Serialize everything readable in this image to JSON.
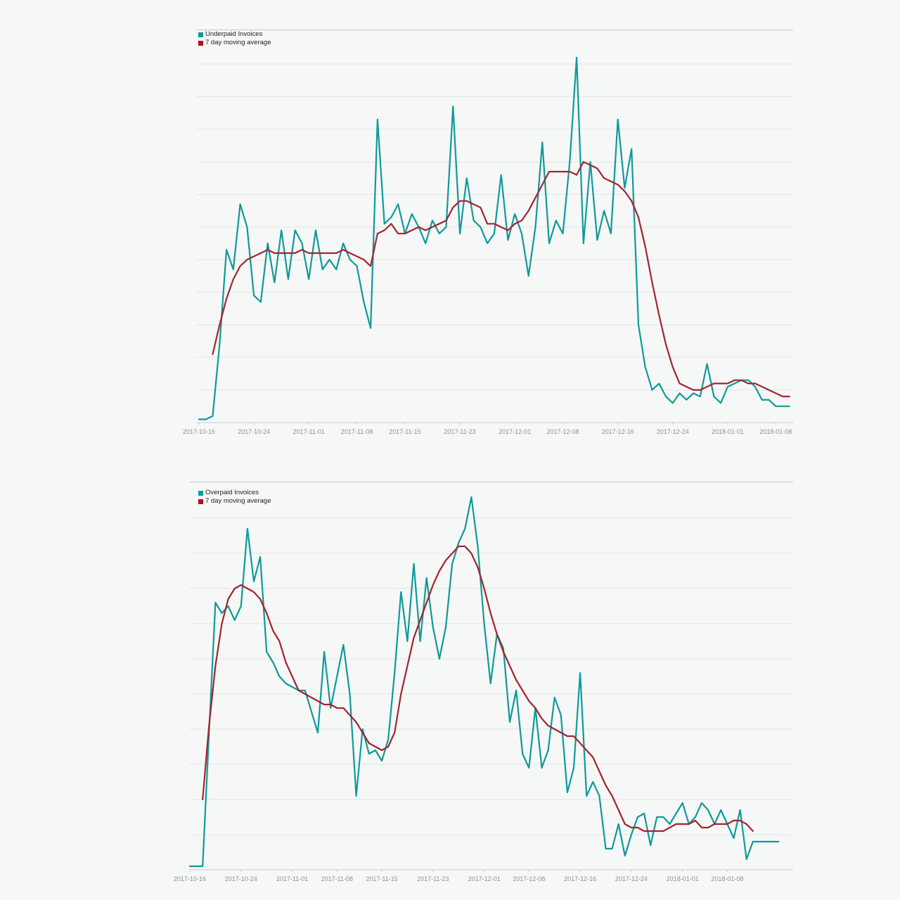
{
  "page": {
    "background": "#f6f7f7",
    "colors": {
      "teal_line": "#0f9a9a",
      "red_line": "#a3242f",
      "teal_swatch": "#0d9a9a",
      "red_swatch": "#b30d1c",
      "gridline": "#e3e5e5",
      "axis_line": "#c9cbcb",
      "axis_label_text": "#8f9192"
    }
  },
  "chart_data": [
    {
      "type": "line",
      "title": "",
      "xlabel": "",
      "ylabel": "",
      "grid": {
        "horizontal": true,
        "vertical": false,
        "y_step": 10
      },
      "ylim": [
        0,
        115
      ],
      "legend_position": "top-left",
      "x_tick_labels": [
        "2017-10-16",
        "2017-10-24",
        "2017-11-01",
        "2017-11-08",
        "2017-11-15",
        "2017-11-23",
        "2017-12-01",
        "2017-12-08",
        "2017-12-16",
        "2017-12-24",
        "2018-01-01",
        "2018-01-08"
      ],
      "x_tick_day_index": [
        0,
        8,
        16,
        23,
        30,
        38,
        46,
        53,
        61,
        69,
        77,
        84
      ],
      "x": [
        "2017-10-16",
        "2017-10-17",
        "2017-10-18",
        "2017-10-19",
        "2017-10-20",
        "2017-10-21",
        "2017-10-22",
        "2017-10-23",
        "2017-10-24",
        "2017-10-25",
        "2017-10-26",
        "2017-10-27",
        "2017-10-28",
        "2017-10-29",
        "2017-10-30",
        "2017-10-31",
        "2017-11-01",
        "2017-11-02",
        "2017-11-03",
        "2017-11-04",
        "2017-11-05",
        "2017-11-06",
        "2017-11-07",
        "2017-11-08",
        "2017-11-09",
        "2017-11-10",
        "2017-11-11",
        "2017-11-12",
        "2017-11-13",
        "2017-11-14",
        "2017-11-15",
        "2017-11-16",
        "2017-11-17",
        "2017-11-18",
        "2017-11-19",
        "2017-11-20",
        "2017-11-21",
        "2017-11-22",
        "2017-11-23",
        "2017-11-24",
        "2017-11-25",
        "2017-11-26",
        "2017-11-27",
        "2017-11-28",
        "2017-11-29",
        "2017-11-30",
        "2017-12-01",
        "2017-12-02",
        "2017-12-03",
        "2017-12-04",
        "2017-12-05",
        "2017-12-06",
        "2017-12-07",
        "2017-12-08",
        "2017-12-09",
        "2017-12-10",
        "2017-12-11",
        "2017-12-12",
        "2017-12-13",
        "2017-12-14",
        "2017-12-15",
        "2017-12-16",
        "2017-12-17",
        "2017-12-18",
        "2017-12-19",
        "2017-12-20",
        "2017-12-21",
        "2017-12-22",
        "2017-12-23",
        "2017-12-24",
        "2017-12-25",
        "2017-12-26",
        "2017-12-27",
        "2017-12-28",
        "2017-12-29",
        "2017-12-30",
        "2017-12-31",
        "2018-01-01",
        "2018-01-02",
        "2018-01-03",
        "2018-01-04",
        "2018-01-05",
        "2018-01-06",
        "2018-01-07",
        "2018-01-08",
        "2018-01-09",
        "2018-01-10"
      ],
      "series": [
        {
          "name": "Underpaid Invoices",
          "color": "#0f9a9a",
          "swatch_color": "#0d9a9a",
          "values": [
            1,
            1,
            2,
            24,
            53,
            47,
            67,
            60,
            39,
            37,
            55,
            43,
            59,
            44,
            59,
            55,
            44,
            59,
            47,
            50,
            47,
            55,
            50,
            48,
            37,
            29,
            93,
            61,
            63,
            67,
            58,
            64,
            60,
            55,
            62,
            58,
            60,
            97,
            58,
            75,
            62,
            60,
            55,
            58,
            76,
            56,
            64,
            58,
            45,
            60,
            86,
            55,
            62,
            58,
            80,
            112,
            55,
            80,
            56,
            65,
            58,
            93,
            72,
            84,
            30,
            17,
            10,
            12,
            8,
            6,
            9,
            7,
            9,
            8,
            18,
            8,
            6,
            11,
            12,
            13,
            13,
            11,
            7,
            7,
            5,
            5,
            5
          ]
        },
        {
          "name": "7 day moving average",
          "color": "#a3242f",
          "swatch_color": "#b30d1c",
          "values": [
            null,
            null,
            21,
            30,
            38,
            44,
            48,
            50,
            51,
            52,
            53,
            52,
            52,
            52,
            52,
            53,
            52,
            52,
            52,
            52,
            52,
            53,
            52,
            51,
            50,
            48,
            58,
            59,
            61,
            58,
            58,
            59,
            60,
            59,
            60,
            61,
            62,
            66,
            68,
            68,
            67,
            66,
            61,
            61,
            60,
            59,
            61,
            62,
            65,
            69,
            73,
            77,
            77,
            77,
            77,
            76,
            80,
            79,
            78,
            75,
            74,
            73,
            71,
            68,
            63,
            54,
            43,
            33,
            24,
            17,
            12,
            11,
            10,
            10,
            11,
            12,
            12,
            12,
            13,
            13,
            12,
            12,
            11,
            10,
            9,
            8,
            8
          ]
        }
      ]
    },
    {
      "type": "line",
      "title": "",
      "xlabel": "",
      "ylabel": "",
      "grid": {
        "horizontal": true,
        "vertical": false,
        "y_step": 10
      },
      "ylim": [
        0,
        110
      ],
      "legend_position": "top-left",
      "x_tick_labels": [
        "2017-10-16",
        "2017-10-24",
        "2017-11-01",
        "2017-11-08",
        "2017-11-15",
        "2017-11-23",
        "2017-12-01",
        "2017-12-08",
        "2017-12-16",
        "2017-12-24",
        "2018-01-01",
        "2018-01-08"
      ],
      "x_tick_day_index": [
        0,
        8,
        16,
        23,
        30,
        38,
        46,
        53,
        61,
        69,
        77,
        84
      ],
      "x": [
        "2017-10-16",
        "2017-10-17",
        "2017-10-18",
        "2017-10-19",
        "2017-10-20",
        "2017-10-21",
        "2017-10-22",
        "2017-10-23",
        "2017-10-24",
        "2017-10-25",
        "2017-10-26",
        "2017-10-27",
        "2017-10-28",
        "2017-10-29",
        "2017-10-30",
        "2017-10-31",
        "2017-11-01",
        "2017-11-02",
        "2017-11-03",
        "2017-11-04",
        "2017-11-05",
        "2017-11-06",
        "2017-11-07",
        "2017-11-08",
        "2017-11-09",
        "2017-11-10",
        "2017-11-11",
        "2017-11-12",
        "2017-11-13",
        "2017-11-14",
        "2017-11-15",
        "2017-11-16",
        "2017-11-17",
        "2017-11-18",
        "2017-11-19",
        "2017-11-20",
        "2017-11-21",
        "2017-11-22",
        "2017-11-23",
        "2017-11-24",
        "2017-11-25",
        "2017-11-26",
        "2017-11-27",
        "2017-11-28",
        "2017-11-29",
        "2017-11-30",
        "2017-12-01",
        "2017-12-02",
        "2017-12-03",
        "2017-12-04",
        "2017-12-05",
        "2017-12-06",
        "2017-12-07",
        "2017-12-08",
        "2017-12-09",
        "2017-12-10",
        "2017-12-11",
        "2017-12-12",
        "2017-12-13",
        "2017-12-14",
        "2017-12-15",
        "2017-12-16",
        "2017-12-17",
        "2017-12-18",
        "2017-12-19",
        "2017-12-20",
        "2017-12-21",
        "2017-12-22",
        "2017-12-23",
        "2017-12-24",
        "2017-12-25",
        "2017-12-26",
        "2017-12-27",
        "2017-12-28",
        "2017-12-29",
        "2017-12-30",
        "2017-12-31",
        "2018-01-01",
        "2018-01-02",
        "2018-01-03",
        "2018-01-04",
        "2018-01-05",
        "2018-01-06",
        "2018-01-07",
        "2018-01-08",
        "2018-01-09",
        "2018-01-10",
        "2018-01-11",
        "2018-01-12",
        "2018-01-13",
        "2018-01-14",
        "2018-01-15",
        "2018-01-16"
      ],
      "series": [
        {
          "name": "Overpaid Invoices",
          "color": "#0f9a9a",
          "swatch_color": "#0d9a9a",
          "values": [
            1,
            1,
            1,
            39,
            76,
            73,
            75,
            71,
            75,
            97,
            82,
            89,
            62,
            59,
            55,
            53,
            52,
            51,
            51,
            45,
            39,
            62,
            46,
            55,
            64,
            50,
            21,
            40,
            33,
            34,
            31,
            37,
            56,
            79,
            65,
            87,
            65,
            83,
            69,
            60,
            69,
            87,
            93,
            97,
            106,
            92,
            70,
            53,
            67,
            63,
            42,
            51,
            33,
            29,
            46,
            29,
            34,
            49,
            44,
            22,
            29,
            56,
            21,
            25,
            21,
            6,
            6,
            13,
            4,
            10,
            15,
            16,
            7,
            15,
            15,
            13,
            16,
            19,
            13,
            15,
            19,
            17,
            13,
            17,
            13,
            9,
            17,
            3,
            8,
            8,
            8,
            8,
            8
          ]
        },
        {
          "name": "7 day moving average",
          "color": "#a3242f",
          "swatch_color": "#b30d1c",
          "values": [
            null,
            null,
            20,
            41,
            58,
            70,
            77,
            80,
            81,
            80,
            79,
            77,
            73,
            68,
            65,
            59,
            55,
            51,
            50,
            49,
            48,
            47,
            47,
            46,
            46,
            44,
            42,
            39,
            36,
            35,
            34,
            35,
            39,
            50,
            58,
            66,
            71,
            76,
            81,
            85,
            88,
            90,
            92,
            92,
            90,
            86,
            80,
            73,
            67,
            62,
            58,
            54,
            51,
            48,
            46,
            43,
            41,
            40,
            39,
            38,
            38,
            36,
            34,
            32,
            28,
            24,
            21,
            17,
            13,
            12,
            12,
            11,
            11,
            11,
            11,
            12,
            13,
            13,
            13,
            14,
            12,
            12,
            13,
            13,
            13,
            14,
            14,
            13,
            11,
            null,
            null,
            null,
            null
          ]
        }
      ]
    }
  ]
}
